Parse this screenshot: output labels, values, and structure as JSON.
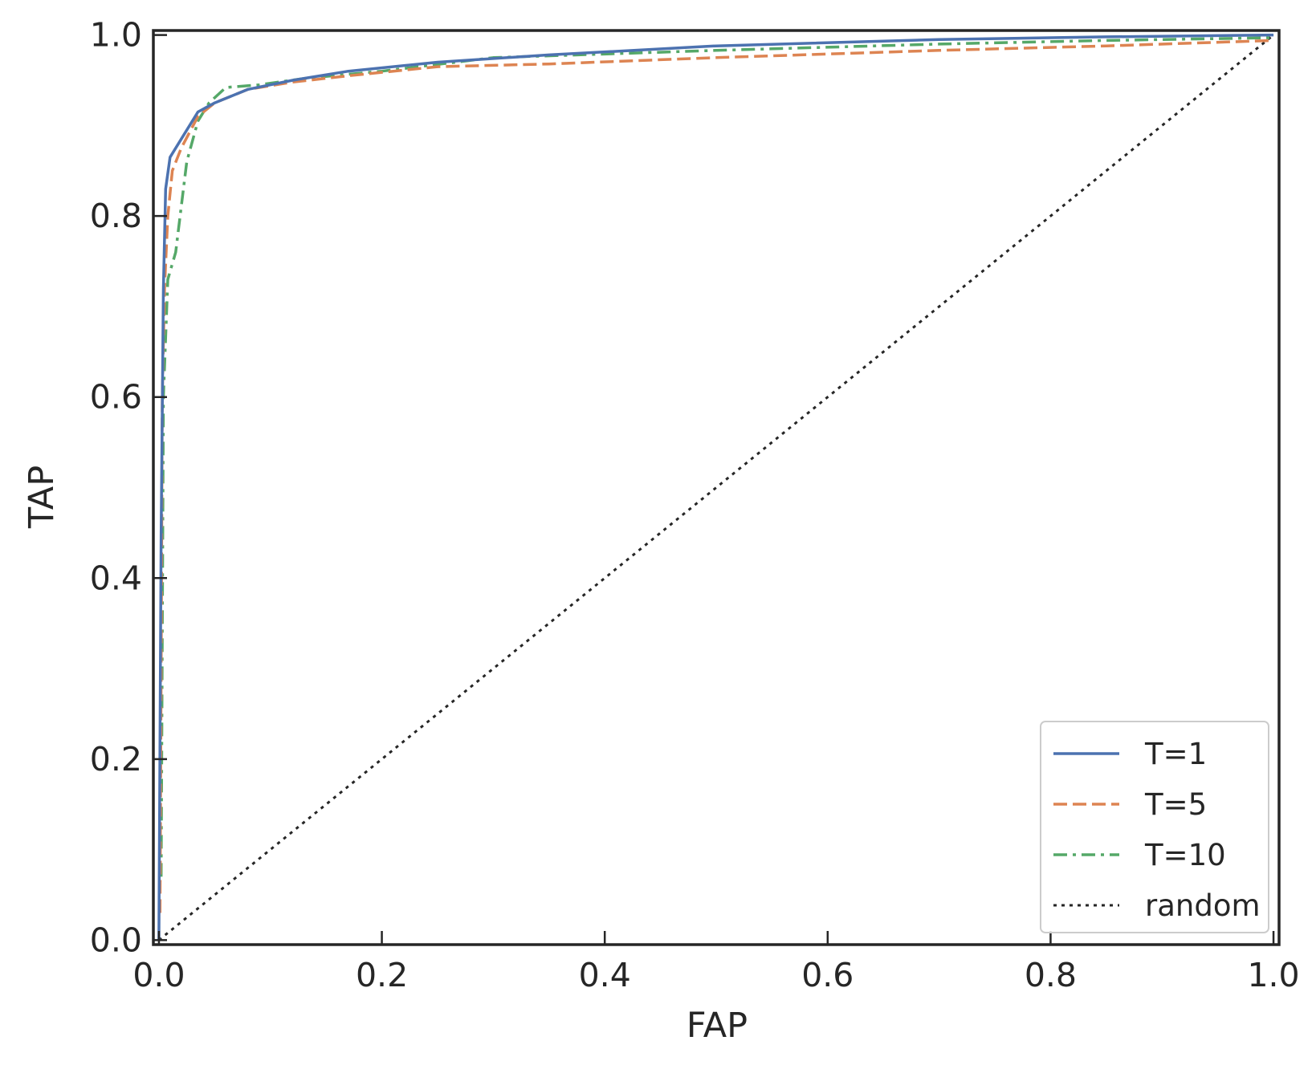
{
  "chart_data": {
    "type": "line",
    "title": "",
    "xlabel": "FAP",
    "ylabel": "TAP",
    "xlim": [
      -0.005,
      1.005
    ],
    "ylim": [
      -0.005,
      1.005
    ],
    "xticks": [
      0.0,
      0.2,
      0.4,
      0.6,
      0.8,
      1.0
    ],
    "yticks": [
      0.0,
      0.2,
      0.4,
      0.6,
      0.8,
      1.0
    ],
    "xtick_labels": [
      "0.0",
      "0.2",
      "0.4",
      "0.6",
      "0.8",
      "1.0"
    ],
    "ytick_labels": [
      "0.0",
      "0.2",
      "0.4",
      "0.6",
      "0.8",
      "1.0"
    ],
    "grid": false,
    "legend_position": "bottom-right",
    "series": [
      {
        "name": "T=1",
        "color": "#4c72b0",
        "dash": "solid",
        "x": [
          0.0,
          0.002,
          0.004,
          0.006,
          0.01,
          0.02,
          0.035,
          0.05,
          0.08,
          0.12,
          0.17,
          0.25,
          0.35,
          0.5,
          0.7,
          0.85,
          1.0
        ],
        "y": [
          0.0,
          0.45,
          0.72,
          0.83,
          0.865,
          0.885,
          0.915,
          0.925,
          0.94,
          0.95,
          0.96,
          0.97,
          0.978,
          0.988,
          0.995,
          0.998,
          1.0
        ]
      },
      {
        "name": "T=5",
        "color": "#dd8452",
        "dash": "dashed",
        "x": [
          0.001,
          0.002,
          0.003,
          0.005,
          0.008,
          0.012,
          0.02,
          0.035,
          0.05,
          0.08,
          0.12,
          0.17,
          0.25,
          0.35,
          0.5,
          0.7,
          0.85,
          1.0
        ],
        "y": [
          0.03,
          0.3,
          0.6,
          0.72,
          0.8,
          0.85,
          0.875,
          0.91,
          0.925,
          0.94,
          0.948,
          0.955,
          0.965,
          0.968,
          0.975,
          0.983,
          0.988,
          0.994
        ]
      },
      {
        "name": "T=10",
        "color": "#55a868",
        "dash": "dashdot",
        "x": [
          0.002,
          0.004,
          0.008,
          0.015,
          0.02,
          0.025,
          0.035,
          0.045,
          0.06,
          0.09,
          0.13,
          0.2,
          0.3,
          0.5,
          0.7,
          0.85,
          1.0
        ],
        "y": [
          0.07,
          0.6,
          0.73,
          0.76,
          0.81,
          0.86,
          0.905,
          0.925,
          0.942,
          0.945,
          0.952,
          0.96,
          0.975,
          0.983,
          0.99,
          0.994,
          0.997
        ]
      },
      {
        "name": "random",
        "color": "#262626",
        "dash": "dotted",
        "x": [
          0.0,
          1.0
        ],
        "y": [
          0.0,
          1.0
        ]
      }
    ]
  }
}
